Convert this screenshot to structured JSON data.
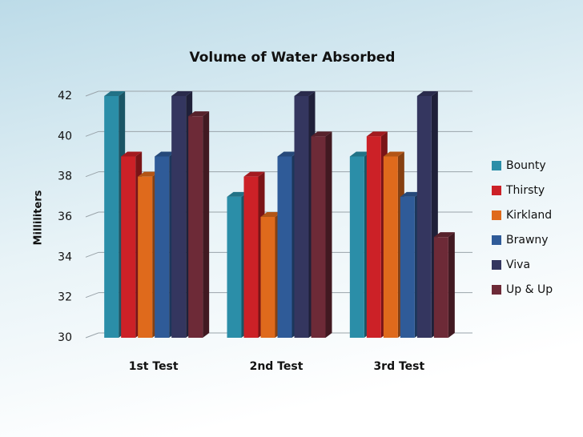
{
  "chart_data": {
    "type": "bar3d",
    "title": "Volume of Water Absorbed",
    "y_label": "Milliliters",
    "categories": [
      "1st Test",
      "2nd Test",
      "3rd Test"
    ],
    "series": [
      {
        "name": "Bounty",
        "color": "#2b8ea8",
        "values": [
          42,
          37,
          39
        ]
      },
      {
        "name": "Thirsty",
        "color": "#cc2127",
        "values": [
          39,
          38,
          40
        ]
      },
      {
        "name": "Kirkland",
        "color": "#df6a1c",
        "values": [
          38,
          36,
          39
        ]
      },
      {
        "name": "Brawny",
        "color": "#2f5b98",
        "values": [
          39,
          39,
          37
        ]
      },
      {
        "name": "Viva",
        "color": "#34365f",
        "values": [
          42,
          42,
          42
        ]
      },
      {
        "name": "Up & Up",
        "color": "#6d2a37",
        "values": [
          41,
          40,
          35
        ]
      }
    ],
    "ylim": [
      30,
      42
    ],
    "yticks": [
      30,
      32,
      34,
      36,
      38,
      40,
      42
    ],
    "grid": true,
    "legend": "right"
  }
}
